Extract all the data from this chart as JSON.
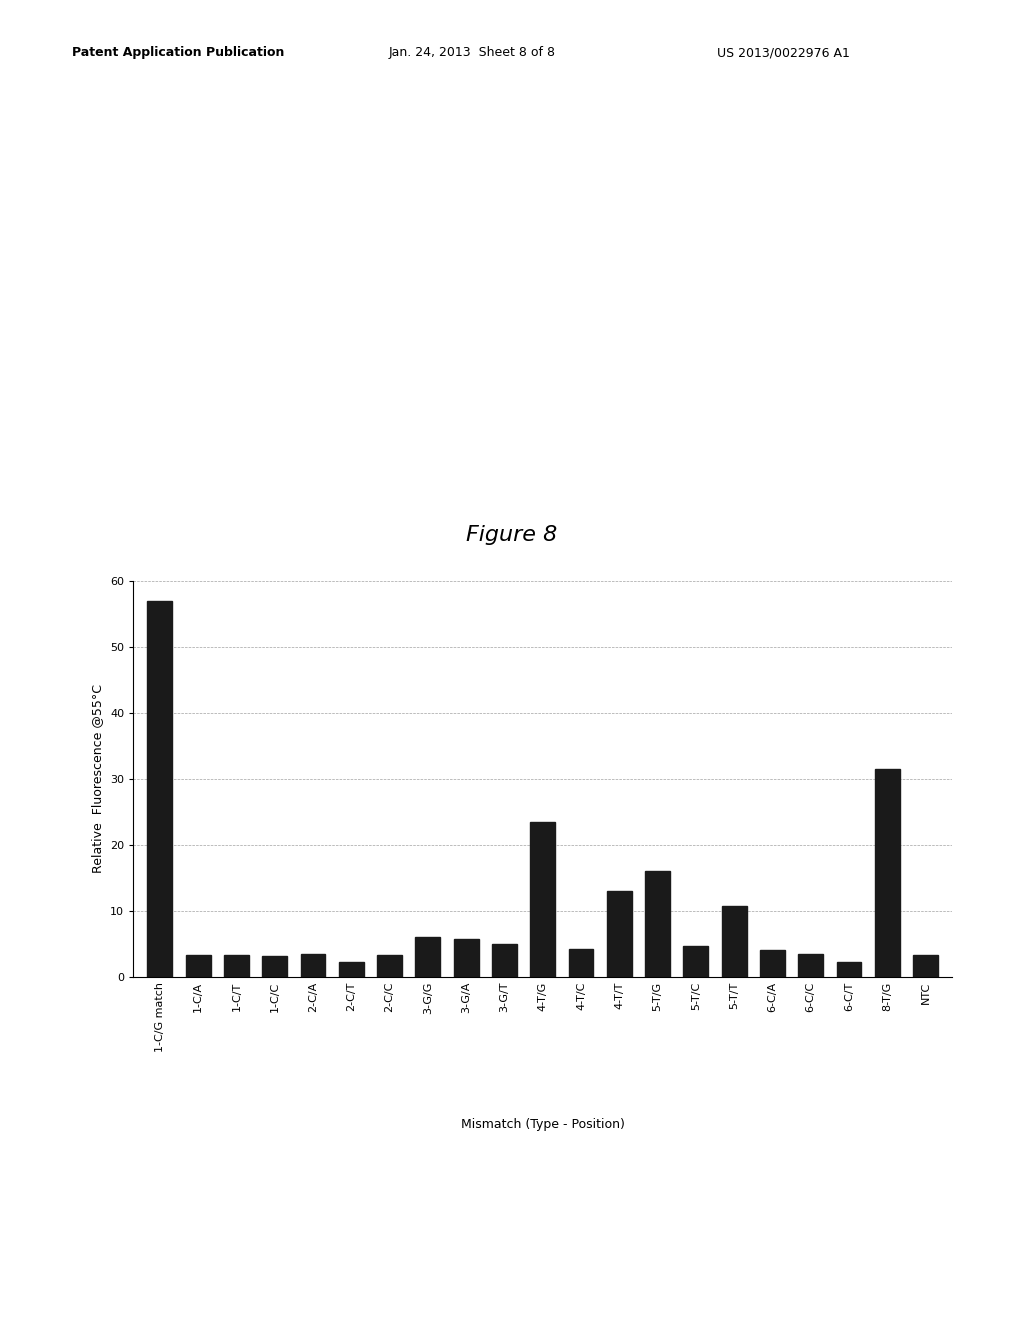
{
  "categories": [
    "1-C/G match",
    "1-C/A",
    "1-C/T",
    "1-C/C",
    "2-C/A",
    "2-C/T",
    "2-C/C",
    "3-G/G",
    "3-G/A",
    "3-G/T",
    "4-T/G",
    "4-T/C",
    "4-T/T",
    "5-T/G",
    "5-T/C",
    "5-T/T",
    "6-C/A",
    "6-C/C",
    "6-C/T",
    "8-T/G",
    "NTC"
  ],
  "values": [
    57,
    3.3,
    3.3,
    3.2,
    3.5,
    2.3,
    3.3,
    6.0,
    5.8,
    5.0,
    23.5,
    4.2,
    13.0,
    16.0,
    4.7,
    10.7,
    4.0,
    3.5,
    2.3,
    31.5,
    3.3
  ],
  "bar_color": "#1a1a1a",
  "ylabel": "Relative  Fluorescence @55°C",
  "xlabel": "Mismatch (Type - Position)",
  "figure_label": "Figure 8",
  "ylim": [
    0,
    60
  ],
  "yticks": [
    0,
    10,
    20,
    30,
    40,
    50,
    60
  ],
  "background_color": "#ffffff",
  "figure_label_fontsize": 16,
  "axis_label_fontsize": 9,
  "tick_fontsize": 8,
  "header_left": "Patent Application Publication",
  "header_mid": "Jan. 24, 2013  Sheet 8 of 8",
  "header_right": "US 2013/0022976 A1"
}
